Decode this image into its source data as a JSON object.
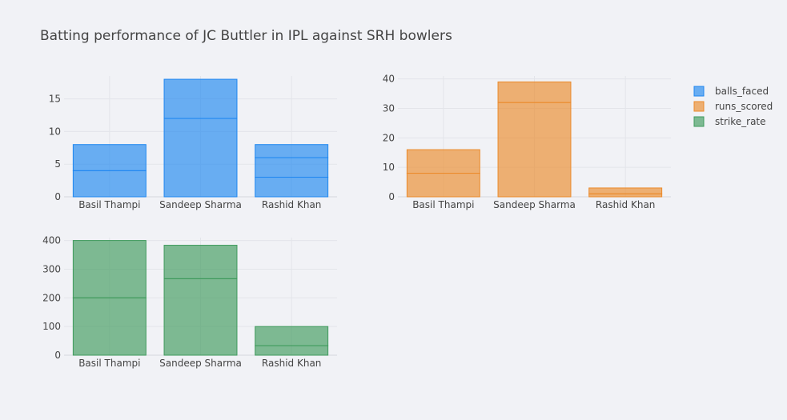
{
  "chart_data": {
    "type": "bar",
    "title": "Batting performance of JC Buttler in IPL against SRH bowlers",
    "categories": [
      "Basil Thampi",
      "Sandeep Sharma",
      "Rashid Khan"
    ],
    "legend_position": "top-right",
    "grid": true,
    "series": [
      {
        "name": "balls_faced",
        "color": "#1f87f0",
        "stacked_segments": [
          [
            4,
            4
          ],
          [
            12,
            6
          ],
          [
            3,
            3,
            2
          ]
        ],
        "values": [
          8,
          18,
          8
        ],
        "ylim": [
          0,
          18.5
        ],
        "yticks": [
          0,
          5,
          10,
          15
        ]
      },
      {
        "name": "runs_scored",
        "color": "#eb8a2b",
        "stacked_segments": [
          [
            8,
            8
          ],
          [
            32,
            7
          ],
          [
            1,
            2
          ]
        ],
        "values": [
          16,
          39,
          3
        ],
        "ylim": [
          0,
          41
        ],
        "yticks": [
          0,
          10,
          20,
          30,
          40
        ]
      },
      {
        "name": "strike_rate",
        "color": "#3f9a5c",
        "stacked_segments": [
          [
            200,
            200
          ],
          [
            266.7,
            116.7
          ],
          [
            33.3,
            66.7
          ]
        ],
        "values": [
          400,
          383.4,
          100
        ],
        "ylim": [
          0,
          410
        ],
        "yticks": [
          0,
          100,
          200,
          300,
          400
        ]
      }
    ]
  }
}
